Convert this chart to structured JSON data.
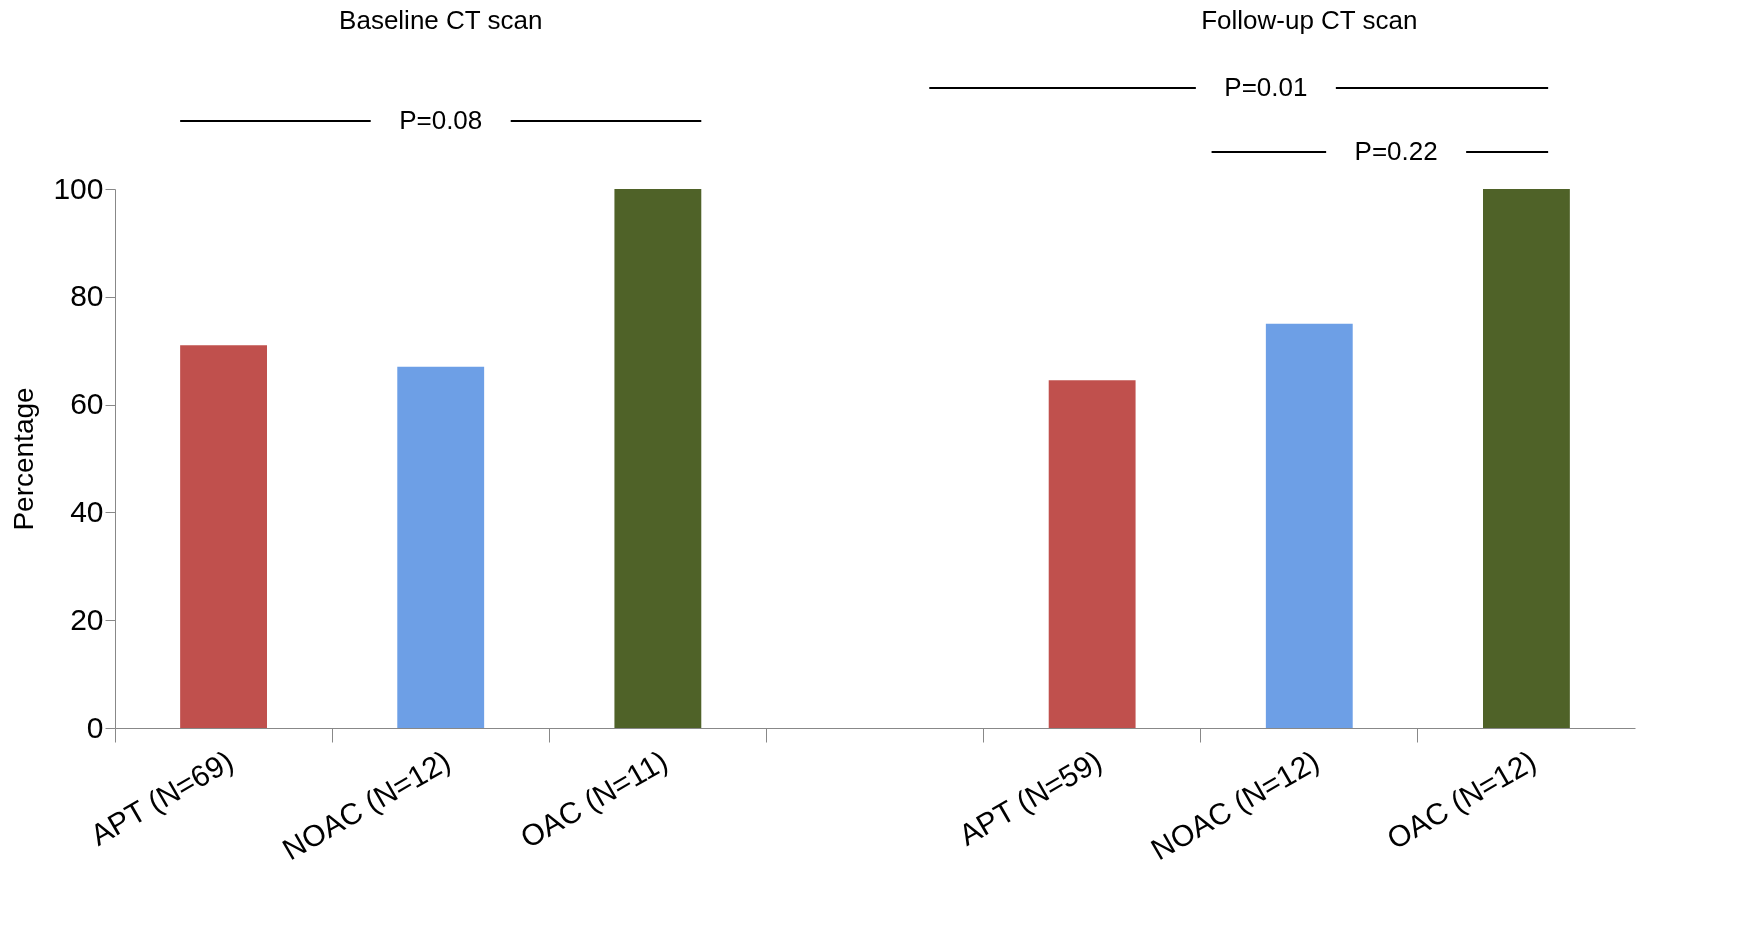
{
  "chart_data": {
    "type": "bar",
    "ylabel": "Percentage",
    "categories": [
      "APT (N=69)",
      "NOAC (N=12)",
      "OAC (N=11)",
      null,
      "APT (N=59)",
      "NOAC (N=12)",
      "OAC (N=12)"
    ],
    "values": [
      71,
      67,
      100,
      null,
      64.5,
      75,
      100
    ],
    "colors": [
      "#c0504d",
      "#6d9fe6",
      "#4f6228",
      "#ffffff",
      "#c0504d",
      "#6d9fe6",
      "#4f6228"
    ],
    "ylim": [
      0,
      100
    ],
    "yticks": [
      0,
      20,
      40,
      60,
      80,
      100
    ],
    "grid": false,
    "annotations": [
      "Baseline CT scan",
      "Follow-up CT scan",
      "P=0.08",
      "P=0.01",
      "P=0.22"
    ]
  }
}
